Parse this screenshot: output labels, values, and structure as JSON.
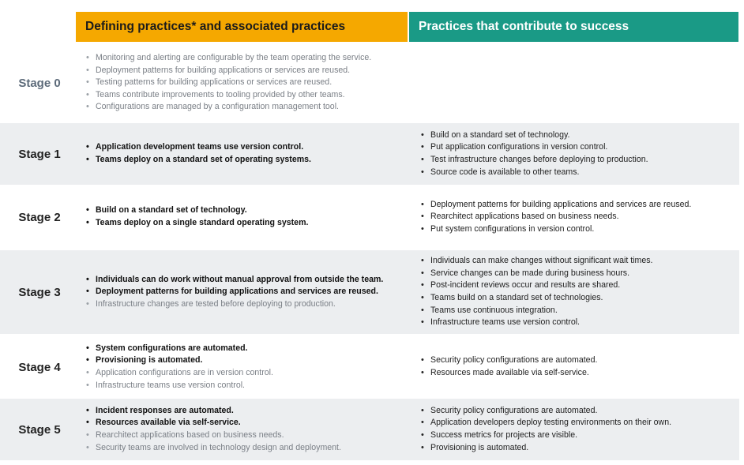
{
  "headers": {
    "defining": "Defining practices* and associated practices",
    "contribute": "Practices that contribute to success"
  },
  "stages": [
    {
      "label": "Stage 0",
      "defining": [],
      "associated": [
        "Monitoring and alerting are configurable by the team operating the service.",
        "Deployment patterns for building applications or services are reused.",
        "Testing patterns for building applications or services are reused.",
        "Teams contribute improvements to tooling provided by other teams.",
        "Configurations are managed by a configuration management tool."
      ],
      "contribute": []
    },
    {
      "label": "Stage 1",
      "defining": [
        "Application development teams use version control.",
        "Teams deploy on a standard set of operating systems."
      ],
      "associated": [],
      "contribute": [
        "Build on a standard set of technology.",
        "Put application configurations in version control.",
        "Test infrastructure changes before deploying to production.",
        "Source code is available to other teams."
      ]
    },
    {
      "label": "Stage 2",
      "defining": [
        "Build on a standard set of technology.",
        "Teams deploy on a single standard operating system."
      ],
      "associated": [],
      "contribute": [
        "Deployment patterns for building applications and services are reused.",
        "Rearchitect applications based on business needs.",
        "Put system configurations  in version control."
      ]
    },
    {
      "label": "Stage 3",
      "defining": [
        "Individuals can do work without manual approval from outside the team.",
        "Deployment patterns for building applications and services are reused."
      ],
      "associated": [
        "Infrastructure changes are tested before deploying to production."
      ],
      "contribute": [
        "Individuals can make changes without significant wait times.",
        "Service changes can be made during business hours.",
        "Post-incident reviews occur and results are shared.",
        "Teams build on a standard set of technologies.",
        "Teams use continuous integration.",
        "Infrastructure teams use version control."
      ]
    },
    {
      "label": "Stage 4",
      "defining": [
        "System configurations are automated.",
        "Provisioning is automated."
      ],
      "associated": [
        "Application configurations are in version control.",
        "Infrastructure teams use version control."
      ],
      "contribute": [
        "Security policy configurations are automated.",
        "Resources made available via self-service."
      ]
    },
    {
      "label": "Stage 5",
      "defining": [
        "Incident responses are automated.",
        "Resources available via self-service."
      ],
      "associated": [
        "Rearchitect applications based on business needs.",
        "Security teams are involved in technology design and deployment."
      ],
      "contribute": [
        "Security policy configurations are automated.",
        "Application developers deploy testing environments on their own.",
        "Success metrics for projects are visible.",
        "Provisioning is automated."
      ]
    }
  ]
}
